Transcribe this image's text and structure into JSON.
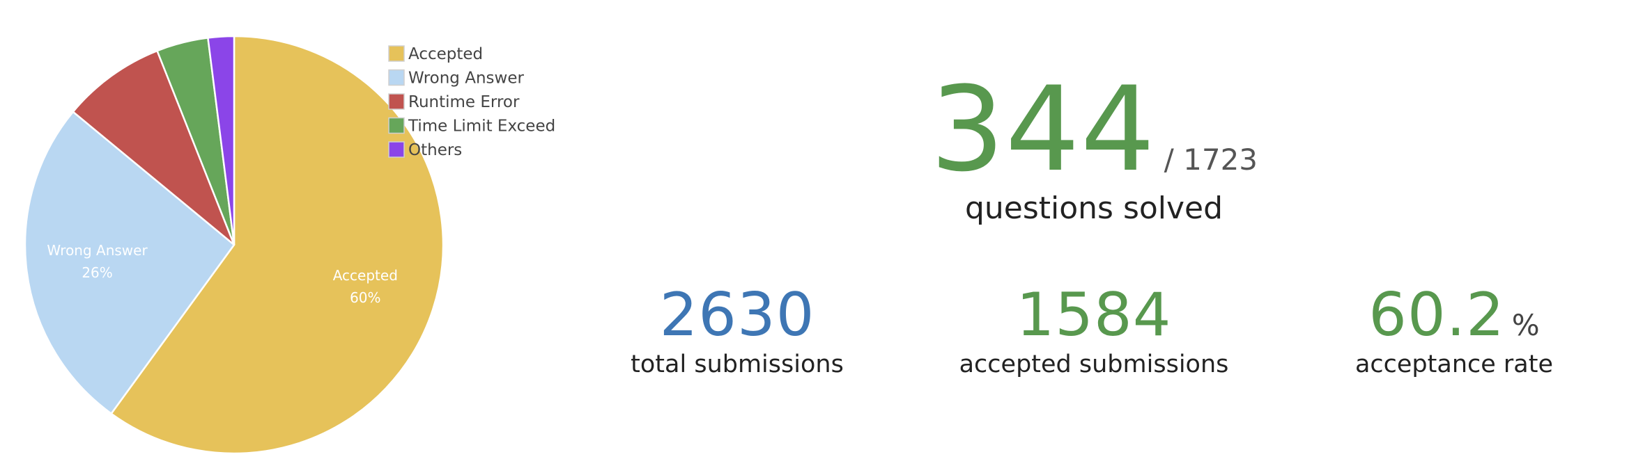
{
  "chart_data": {
    "type": "pie",
    "categories": [
      "Accepted",
      "Wrong Answer",
      "Runtime Error",
      "Time Limit Exceed",
      "Others"
    ],
    "values": [
      60,
      26,
      8,
      4,
      2
    ],
    "colors": [
      "#e6c25a",
      "#b9d7f2",
      "#c0534f",
      "#66a65a",
      "#8b45e8"
    ],
    "slice_labels": [
      {
        "name": "Accepted",
        "pct": "60%"
      },
      {
        "name": "Wrong Answer",
        "pct": "26%"
      }
    ],
    "legend_position": "top-right"
  },
  "stats": {
    "solved": {
      "value": "344",
      "total": "/ 1723",
      "caption": "questions solved"
    },
    "total_submissions": {
      "value": "2630",
      "caption": "total submissions"
    },
    "accepted_submissions": {
      "value": "1584",
      "caption": "accepted submissions"
    },
    "acceptance_rate": {
      "value": "60.2",
      "unit": "%",
      "caption": "acceptance rate"
    }
  }
}
